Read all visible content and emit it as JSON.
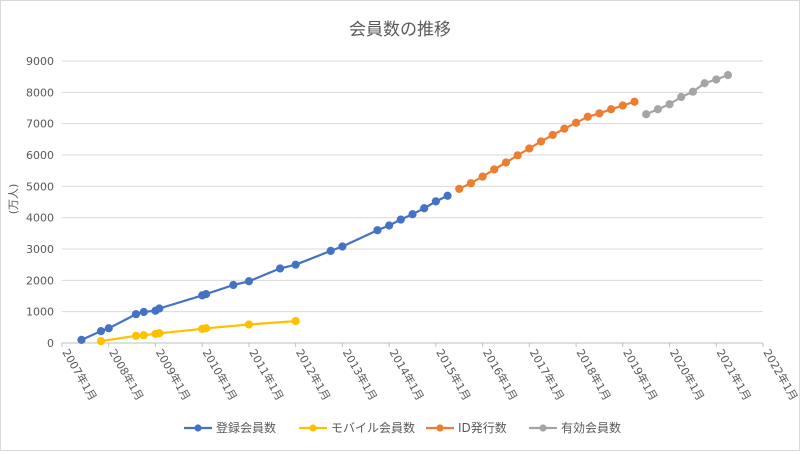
{
  "chart_data": {
    "type": "line",
    "title": "会員数の推移",
    "ylabel": "(万人)",
    "xlabel": "",
    "ylim": [
      0,
      9000
    ],
    "yticks": [
      0,
      1000,
      2000,
      3000,
      4000,
      5000,
      6000,
      7000,
      8000,
      9000
    ],
    "xlim": [
      "2007-01",
      "2022-01"
    ],
    "xticks": [
      "2007年1月",
      "2008年1月",
      "2009年1月",
      "2010年1月",
      "2011年1月",
      "2012年1月",
      "2013年1月",
      "2014年1月",
      "2015年1月",
      "2016年1月",
      "2017年1月",
      "2018年1月",
      "2019年1月",
      "2020年1月",
      "2021年1月",
      "2022年1月"
    ],
    "grid": "horizontal",
    "legend_position": "bottom",
    "series": [
      {
        "name": "登録会員数",
        "color": "#4472C4",
        "points": [
          [
            "2007-06",
            100
          ],
          [
            "2007-11",
            380
          ],
          [
            "2008-01",
            470
          ],
          [
            "2008-08",
            920
          ],
          [
            "2008-10",
            990
          ],
          [
            "2009-01",
            1030
          ],
          [
            "2009-02",
            1100
          ],
          [
            "2010-01",
            1520
          ],
          [
            "2010-02",
            1560
          ],
          [
            "2010-09",
            1850
          ],
          [
            "2011-01",
            1970
          ],
          [
            "2011-09",
            2380
          ],
          [
            "2012-01",
            2500
          ],
          [
            "2012-10",
            2940
          ],
          [
            "2013-01",
            3080
          ],
          [
            "2013-10",
            3600
          ],
          [
            "2014-01",
            3750
          ],
          [
            "2014-04",
            3940
          ],
          [
            "2014-07",
            4110
          ],
          [
            "2014-10",
            4300
          ],
          [
            "2015-01",
            4520
          ],
          [
            "2015-04",
            4700
          ]
        ]
      },
      {
        "name": "モバイル会員数",
        "color": "#FFC000",
        "points": [
          [
            "2007-11",
            60
          ],
          [
            "2008-08",
            230
          ],
          [
            "2008-10",
            250
          ],
          [
            "2009-01",
            290
          ],
          [
            "2009-02",
            310
          ],
          [
            "2010-01",
            450
          ],
          [
            "2010-02",
            470
          ],
          [
            "2011-01",
            590
          ],
          [
            "2012-01",
            700
          ]
        ]
      },
      {
        "name": "ID発行数",
        "color": "#ED7D31",
        "points": [
          [
            "2015-07",
            4920
          ],
          [
            "2015-10",
            5100
          ],
          [
            "2016-01",
            5310
          ],
          [
            "2016-04",
            5540
          ],
          [
            "2016-07",
            5760
          ],
          [
            "2016-10",
            5990
          ],
          [
            "2017-01",
            6210
          ],
          [
            "2017-04",
            6430
          ],
          [
            "2017-07",
            6640
          ],
          [
            "2017-10",
            6840
          ],
          [
            "2018-01",
            7030
          ],
          [
            "2018-04",
            7220
          ],
          [
            "2018-07",
            7330
          ],
          [
            "2018-10",
            7460
          ],
          [
            "2019-01",
            7580
          ],
          [
            "2019-04",
            7700
          ]
        ]
      },
      {
        "name": "有効会員数",
        "color": "#A5A5A5",
        "points": [
          [
            "2019-07",
            7300
          ],
          [
            "2019-10",
            7460
          ],
          [
            "2020-01",
            7620
          ],
          [
            "2020-04",
            7850
          ],
          [
            "2020-07",
            8020
          ],
          [
            "2020-10",
            8290
          ],
          [
            "2021-01",
            8410
          ],
          [
            "2021-04",
            8550
          ]
        ]
      }
    ]
  }
}
